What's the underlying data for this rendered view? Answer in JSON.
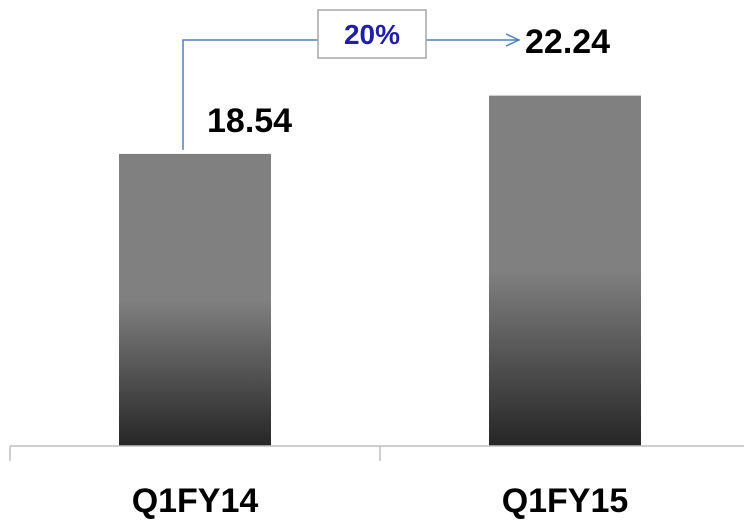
{
  "chart_data": {
    "type": "bar",
    "categories": [
      "Q1FY14",
      "Q1FY15"
    ],
    "values": [
      18.54,
      22.24
    ],
    "data_labels": [
      "18.54",
      "22.24"
    ],
    "title": "",
    "xlabel": "",
    "ylabel": "",
    "ylim": [
      0,
      24.5
    ],
    "grid": false,
    "legend": "none",
    "growth_annotation": {
      "label": "20%",
      "from_category": "Q1FY14",
      "to_category": "Q1FY15"
    },
    "colors": {
      "bar_top": "#808080",
      "bar_bottom": "#262626",
      "axis": "#bfbfbf",
      "annotation_line": "#4f81bd",
      "annotation_text": "#1f1fa8",
      "annotation_box_border": "#a6a6a6",
      "label_text": "#000000"
    }
  }
}
